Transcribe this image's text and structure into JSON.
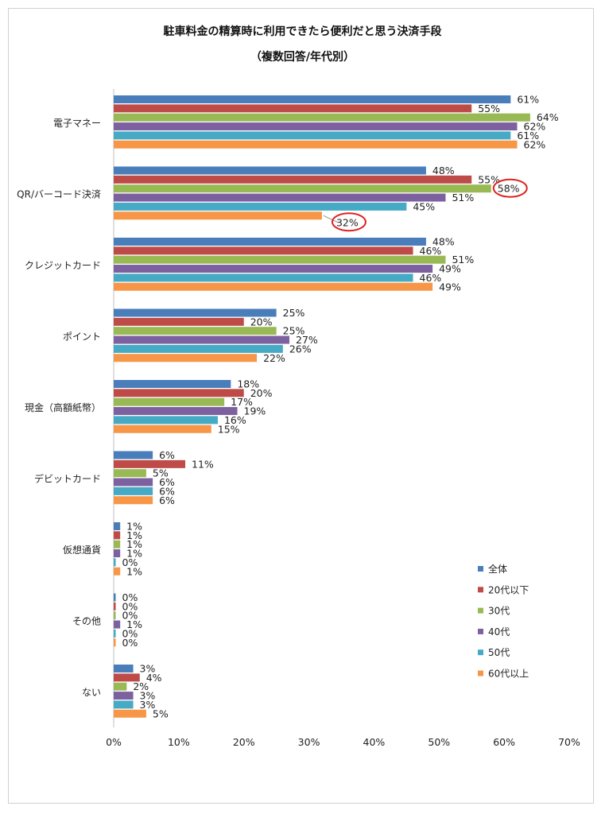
{
  "chart_data": {
    "type": "bar",
    "orientation": "horizontal",
    "title": "駐車料金の精算時に利用できたら便利だと思う決済手段",
    "subtitle": "（複数回答/年代別）",
    "xlabel": "",
    "ylabel": "",
    "xlim": [
      0,
      70
    ],
    "x_ticks": [
      "0%",
      "10%",
      "20%",
      "30%",
      "40%",
      "50%",
      "60%",
      "70%"
    ],
    "grid": false,
    "legend_position": "bottom-right",
    "categories": [
      "電子マネー",
      "QR/バーコード決済",
      "クレジットカード",
      "ポイント",
      "現金（高額紙幣）",
      "デビットカード",
      "仮想通貨",
      "その他",
      "ない"
    ],
    "series": [
      {
        "name": "全体",
        "color": "#4a7ebb",
        "values": [
          61,
          48,
          48,
          25,
          18,
          6,
          1,
          0,
          3
        ]
      },
      {
        "name": "20代以下",
        "color": "#be4b48",
        "values": [
          55,
          55,
          46,
          20,
          20,
          11,
          1,
          0,
          4
        ]
      },
      {
        "name": "30代",
        "color": "#98b954",
        "values": [
          64,
          58,
          51,
          25,
          17,
          5,
          1,
          0,
          2
        ]
      },
      {
        "name": "40代",
        "color": "#7d60a0",
        "values": [
          62,
          51,
          49,
          27,
          19,
          6,
          1,
          1,
          3
        ]
      },
      {
        "name": "50代",
        "color": "#46aac5",
        "values": [
          61,
          45,
          46,
          26,
          16,
          6,
          0,
          0,
          3
        ]
      },
      {
        "name": "60代以上",
        "color": "#f79646",
        "values": [
          62,
          32,
          49,
          22,
          15,
          6,
          1,
          0,
          5
        ]
      }
    ],
    "highlighted": [
      {
        "category": "QR/バーコード決済",
        "series": "30代"
      },
      {
        "category": "QR/バーコード決済",
        "series": "60代以上"
      }
    ],
    "highlight_color": "#e0201e"
  }
}
